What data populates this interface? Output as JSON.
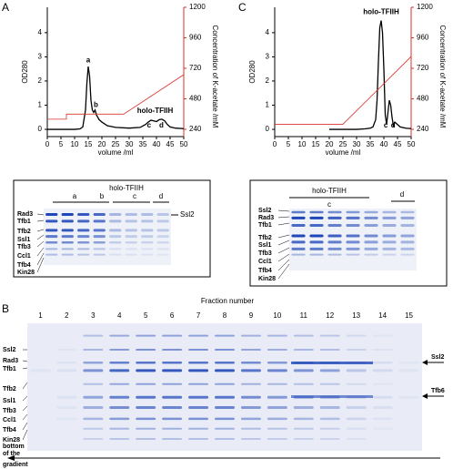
{
  "panel_labels": [
    "A",
    "B",
    "C"
  ],
  "chart_data": [
    {
      "type": "line",
      "xlabel": "volume /ml",
      "ylabel": "OD280",
      "y2label": "Concentration of K-acetate /mM",
      "xlim": [
        0,
        50
      ],
      "xticks": [
        0,
        5,
        10,
        15,
        20,
        25,
        30,
        35,
        40,
        45,
        50
      ],
      "ylim": [
        -0.3,
        5.05
      ],
      "yticks": [
        0,
        1,
        2,
        3,
        4
      ],
      "y2lim": [
        183,
        1200
      ],
      "y2ticks": [
        240,
        480,
        720,
        960,
        1200
      ],
      "y2color": "#d9322b",
      "series": [
        {
          "color": "#000000",
          "x": [
            0,
            5,
            10,
            12,
            13,
            14,
            14.5,
            15,
            15.5,
            16,
            16.5,
            17,
            17.5,
            18,
            19,
            20,
            22,
            25,
            30,
            34,
            36,
            37,
            38,
            39,
            40,
            41,
            42,
            43,
            44,
            45,
            47,
            50
          ],
          "values": [
            0,
            0,
            0,
            0.02,
            0.1,
            0.8,
            1.9,
            2.6,
            2.2,
            1.2,
            0.8,
            0.7,
            0.8,
            0.6,
            0.4,
            0.3,
            0.15,
            0.08,
            0.05,
            0.08,
            0.2,
            0.3,
            0.38,
            0.35,
            0.32,
            0.4,
            0.42,
            0.35,
            0.2,
            0.1,
            0.05,
            0.03
          ]
        },
        {
          "color": "#d9322b",
          "axis": "y2",
          "x": [
            0,
            7,
            7,
            28,
            50
          ],
          "values": [
            320,
            320,
            360,
            360,
            670
          ]
        }
      ],
      "annotations": [
        {
          "text": "a",
          "x": 15,
          "y": 2.85
        },
        {
          "text": "b",
          "x": 17.8,
          "y": 1.0
        },
        {
          "text": "holo-TFIIH",
          "x": 39.5,
          "y": 0.75
        },
        {
          "text": "c",
          "x": 37.3,
          "y": 0.15
        },
        {
          "text": "d",
          "x": 41.8,
          "y": 0.15
        }
      ]
    },
    {
      "type": "line",
      "xlabel": "volume /ml",
      "ylabel": "OD280",
      "y2label": "Concentration of K-acetate /mM",
      "xlim": [
        0,
        50
      ],
      "xticks": [
        0,
        5,
        10,
        15,
        20,
        25,
        30,
        35,
        40,
        45,
        50
      ],
      "ylim": [
        -0.3,
        5.05
      ],
      "yticks": [
        0,
        1,
        2,
        3,
        4
      ],
      "y2lim": [
        183,
        1200
      ],
      "y2ticks": [
        240,
        480,
        720,
        960,
        1200
      ],
      "y2color": "#d9322b",
      "series": [
        {
          "color": "#000000",
          "x": [
            20,
            25,
            30,
            33,
            35,
            36,
            37,
            37.5,
            38,
            38.5,
            39,
            39.5,
            40,
            40.5,
            41,
            41.5,
            42,
            42.5,
            43,
            43.5,
            44,
            45,
            46,
            48,
            50
          ],
          "values": [
            0,
            0,
            0,
            0.02,
            0.05,
            0.1,
            0.4,
            1.2,
            2.8,
            4.2,
            4.5,
            4.0,
            2.5,
            0.6,
            0.2,
            0.7,
            1.2,
            1.0,
            0.5,
            0.15,
            0.3,
            0.2,
            0.1,
            0.05,
            0.03
          ]
        },
        {
          "color": "#d9322b",
          "axis": "y2",
          "x": [
            0,
            25,
            50
          ],
          "values": [
            280,
            280,
            813
          ]
        }
      ],
      "annotations": [
        {
          "text": "holo-TFIIH",
          "x": 39,
          "y": 4.85
        },
        {
          "text": "c",
          "x": 40.7,
          "y": 0.15
        },
        {
          "text": "d",
          "x": 43.4,
          "y": 0.15
        }
      ]
    }
  ],
  "gel_A": {
    "header": "holo-TFIIH",
    "groups": [
      "a",
      "b",
      "c",
      "d"
    ],
    "marker": "Ssl2",
    "proteins": [
      "Rad3",
      "Tfb1",
      "Tfb2",
      "Ssl1",
      "Tfb3",
      "Ccl1",
      "Tfb4",
      "Kin28"
    ]
  },
  "gel_C": {
    "header": "holo-TFIIH",
    "groups": [
      "c",
      "d"
    ],
    "proteins": [
      "Ssl2",
      "Rad3",
      "Tfb1",
      "Tfb2",
      "Ssl1",
      "Tfb3",
      "Ccl1",
      "Tfb4",
      "Kin28"
    ]
  },
  "gel_B": {
    "title": "Fraction number",
    "fractions": [
      1,
      2,
      3,
      4,
      5,
      6,
      7,
      8,
      9,
      10,
      11,
      12,
      13,
      14,
      15
    ],
    "proteins": [
      "Ssl2",
      "Rad3",
      "Tfb1",
      "Tfb2",
      "Ssl1",
      "Tfb3",
      "Ccl1",
      "Tfb4",
      "Kin28"
    ],
    "markers": [
      "Ssl2",
      "Tfb6"
    ],
    "direction": [
      "bottom",
      "of the",
      "gradient"
    ]
  }
}
